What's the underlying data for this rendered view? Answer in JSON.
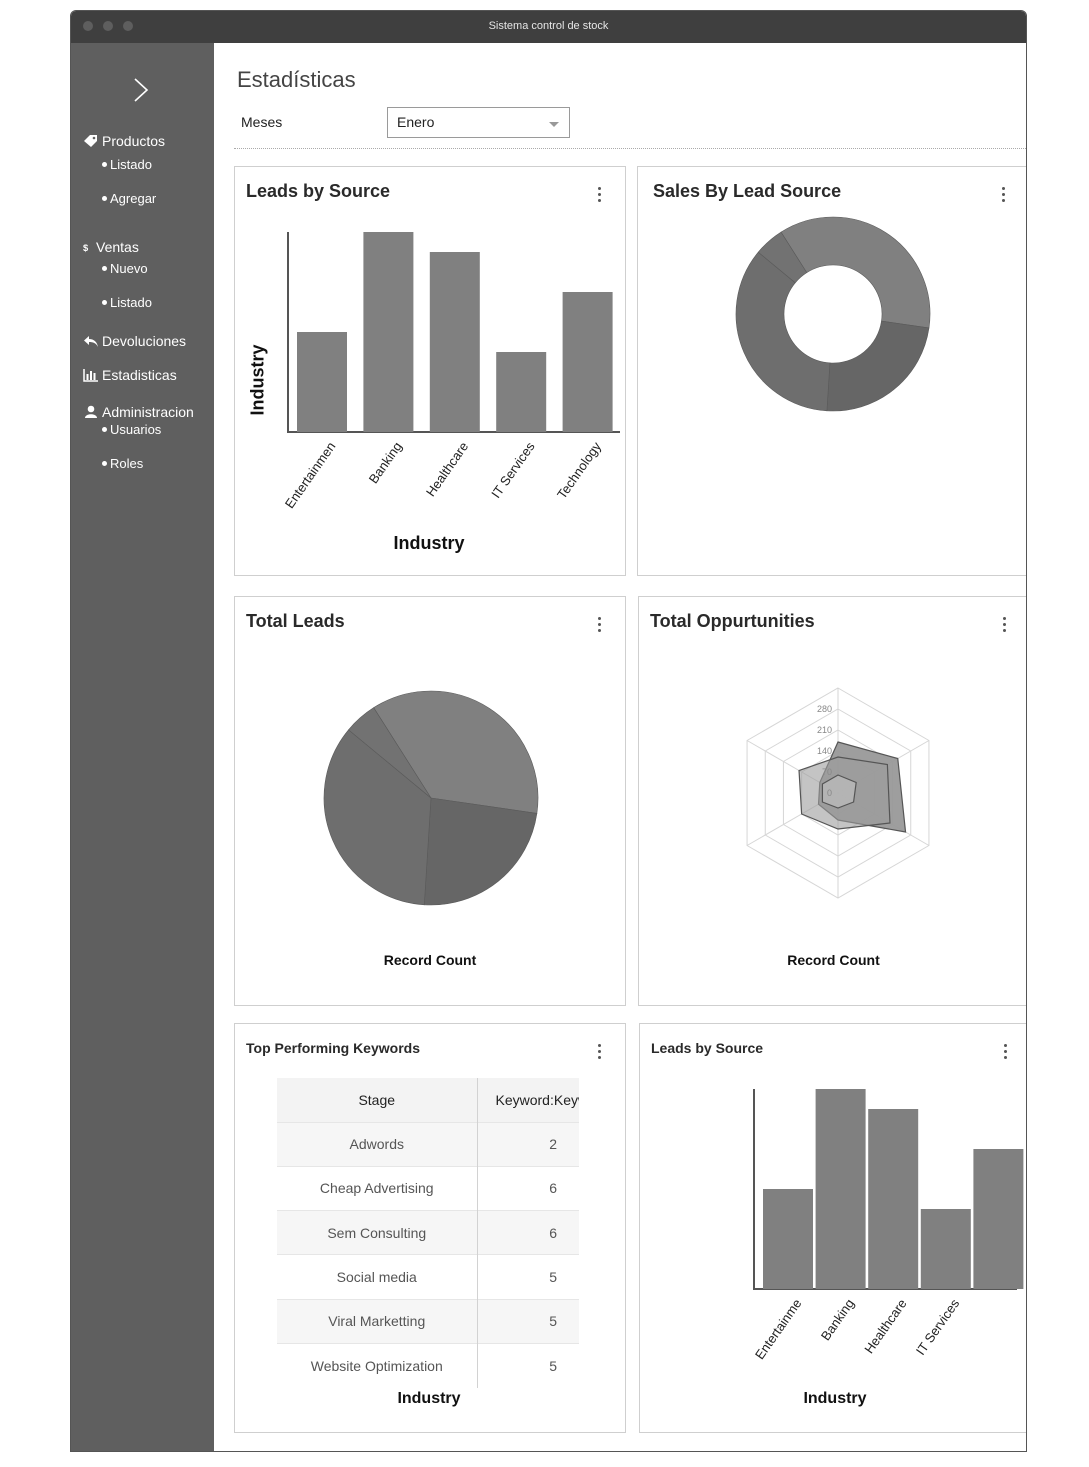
{
  "window": {
    "title": "Sistema control de stock"
  },
  "sidebar": {
    "toggle_icon": "chevron-right-icon",
    "menu": [
      {
        "label": "Productos",
        "icon": "tag-icon",
        "children": [
          "Listado",
          "Agregar"
        ]
      },
      {
        "label": "Ventas",
        "icon": "dollar-icon",
        "children": [
          "Nuevo",
          "Listado"
        ]
      },
      {
        "label": "Devoluciones",
        "icon": "reply-icon",
        "children": []
      },
      {
        "label": "Estadisticas",
        "icon": "bar-chart-icon",
        "children": []
      },
      {
        "label": "Administracion",
        "icon": "user-icon",
        "children": [
          "Usuarios",
          "Roles"
        ]
      }
    ]
  },
  "main": {
    "title": "Estadísticas",
    "filter": {
      "label": "Meses",
      "value": "Enero"
    }
  },
  "cards": {
    "leads_by_source": {
      "title": "Leads by Source",
      "ylabel": "Industry",
      "xlabel": "Industry"
    },
    "sales_by_lead_source": {
      "title": "Sales By Lead Source"
    },
    "total_leads": {
      "title": "Total Leads",
      "footer": "Record Count"
    },
    "total_opportunities": {
      "title": "Total Oppurtunities",
      "footer": "Record Count"
    },
    "top_keywords": {
      "title": "Top Performing Keywords",
      "columns": [
        "Stage",
        "Keyword:Keyw"
      ],
      "rows": [
        [
          "Adwords",
          "2"
        ],
        [
          "Cheap Advertising",
          "6"
        ],
        [
          "Sem Consulting",
          "6"
        ],
        [
          "Social media",
          "5"
        ],
        [
          "Viral Marketting",
          "5"
        ],
        [
          "Website Optimization",
          "5"
        ]
      ],
      "footer": "Industry"
    },
    "leads_by_source_2": {
      "title": "Leads by Source",
      "xlabel": "Industry"
    }
  },
  "chart_data": [
    {
      "type": "bar",
      "title": "Leads by Source",
      "xlabel": "Industry",
      "ylabel": "Industry",
      "categories": [
        "Entertainmen",
        "Banking",
        "Healthcare",
        "IT Services",
        "Technology"
      ],
      "values": [
        50,
        100,
        90,
        40,
        70
      ],
      "ylim": [
        0,
        100
      ],
      "color": "#808080"
    },
    {
      "type": "pie",
      "title": "Sales By Lead Source",
      "donut": true,
      "slices": [
        {
          "value": 36.3,
          "color": "#808080"
        },
        {
          "value": 23.7,
          "color": "#666666"
        },
        {
          "value": 35.0,
          "color": "#6e6e6e"
        },
        {
          "value": 5.0,
          "color": "#727272"
        }
      ]
    },
    {
      "type": "pie",
      "title": "Total Leads",
      "donut": false,
      "slices": [
        {
          "value": 36.3,
          "color": "#808080"
        },
        {
          "value": 23.7,
          "color": "#666666"
        },
        {
          "value": 35.0,
          "color": "#6e6e6e"
        },
        {
          "value": 5.0,
          "color": "#727272"
        }
      ]
    },
    {
      "type": "radar",
      "title": "Total Oppurtunities",
      "tick_labels": [
        "0",
        "70",
        "140",
        "210",
        "280"
      ],
      "max": 350,
      "series": [
        {
          "values": [
            170,
            230,
            260,
            90,
            75,
            70
          ],
          "color": "#999999",
          "opacity": 0.95
        },
        {
          "values": [
            120,
            190,
            200,
            120,
            140,
            150
          ],
          "color": "#9c9c9c",
          "opacity": 0.6
        },
        {
          "values": [
            60,
            70,
            60,
            50,
            60,
            60
          ],
          "color": "#bdbdbd",
          "opacity": 0.7
        }
      ]
    },
    {
      "type": "bar",
      "title": "Leads by Source",
      "xlabel": "Industry",
      "categories": [
        "Entertainme",
        "Banking",
        "Healthcare",
        "IT Services",
        ""
      ],
      "values": [
        50,
        100,
        90,
        40,
        70
      ],
      "ylim": [
        0,
        100
      ],
      "color": "#808080"
    }
  ]
}
